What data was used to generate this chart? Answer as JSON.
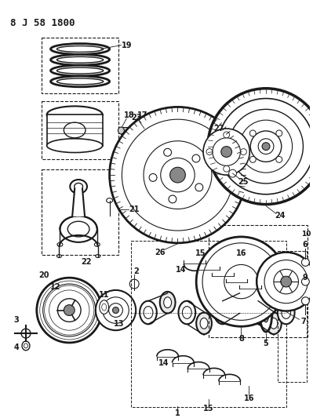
{
  "title": "8 J 58 1800",
  "bg_color": "#ffffff",
  "line_color": "#1a1a1a",
  "figsize": [
    3.99,
    5.33
  ],
  "dpi": 100
}
